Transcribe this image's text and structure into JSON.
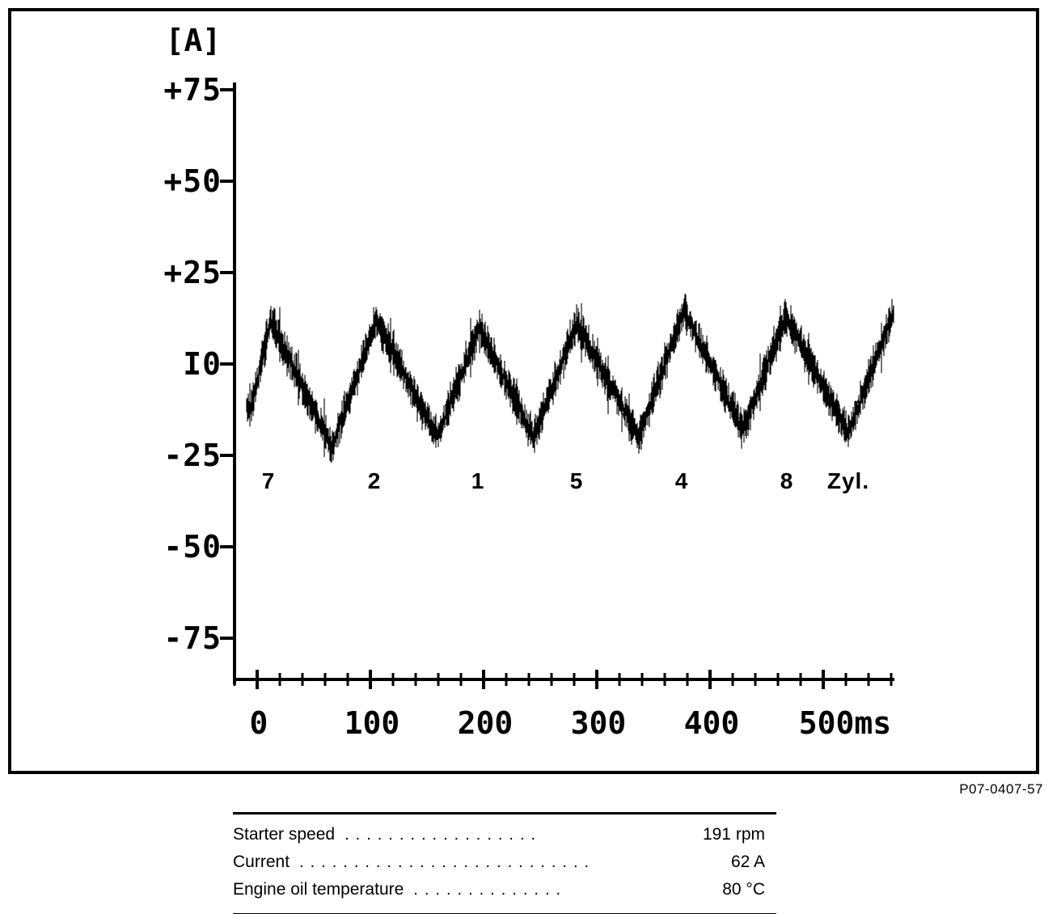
{
  "figure_code": "P07-0407-57",
  "chart": {
    "unit_label": "[A]",
    "y_tick_labels": [
      "+75",
      "+50",
      "+25",
      "I0",
      "-25",
      "-50",
      "-75"
    ],
    "x_tick_labels": [
      "0",
      "100",
      "200",
      "300",
      "400",
      "500ms"
    ],
    "cylinder_labels": [
      "7",
      "2",
      "1",
      "5",
      "4",
      "8",
      "Zyl."
    ]
  },
  "specs": {
    "rows": [
      {
        "label": "Starter speed",
        "dots": "..................",
        "value": "191 rpm"
      },
      {
        "label": "Current",
        "dots": "...........................",
        "value": "62 A"
      },
      {
        "label": "Engine oil temperature",
        "dots": "..............",
        "value": "80 °C"
      }
    ]
  },
  "chart_data": {
    "type": "line",
    "title": "Starter motor current draw oscillogram (relative compression test)",
    "ylabel": "Current [A]",
    "xlabel": "Time [ms]",
    "y_ticks": [
      75,
      50,
      25,
      0,
      -25,
      -50,
      -75
    ],
    "x_ticks_ms": [
      0,
      100,
      200,
      300,
      400,
      500
    ],
    "x_minor_step_ms": 20,
    "x_range_ms": [
      -10,
      565
    ],
    "y_range": [
      -95,
      95
    ],
    "grid": false,
    "legend": false,
    "cylinder_firing_order": [
      "7",
      "2",
      "1",
      "5",
      "4",
      "8"
    ],
    "series": [
      {
        "name": "starter_current",
        "keypoints_ms_A": [
          [
            -5,
            -12
          ],
          [
            12,
            12
          ],
          [
            66,
            -23
          ],
          [
            105,
            12
          ],
          [
            159,
            -20
          ],
          [
            196,
            10
          ],
          [
            244,
            -20
          ],
          [
            282,
            11
          ],
          [
            337,
            -20
          ],
          [
            377,
            15
          ],
          [
            429,
            -18
          ],
          [
            467,
            13
          ],
          [
            522,
            -19
          ],
          [
            562,
            14
          ]
        ]
      }
    ],
    "noise_amplitude_A": 4
  }
}
